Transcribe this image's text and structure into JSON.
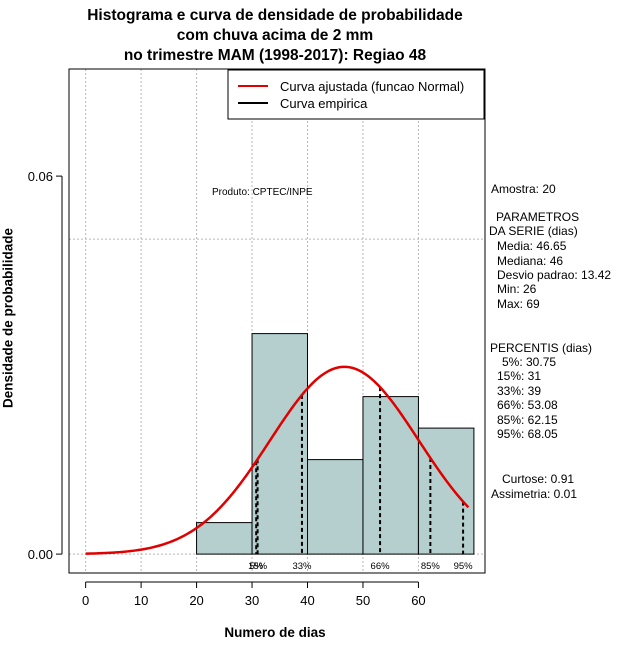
{
  "header": {
    "title_line1": "Histograma e curva de densidade de probabilidade",
    "title_line2": "com chuva acima de 2 mm",
    "title_line3": "no trimestre MAM (1998-2017): Regiao 48"
  },
  "product_label": "Produto: CPTEC/INPE",
  "stats": {
    "amostra": "Amostra: 20",
    "param_title1": "PARAMETROS",
    "param_title2": "DA SERIE (dias)",
    "media": "Media: 46.65",
    "mediana": "Mediana: 46",
    "desvio": "Desvio padrao: 13.42",
    "min": "Min: 26",
    "max": "Max: 69",
    "percentis_title": "PERCENTIS (dias)",
    "p5": "5%: 30.75",
    "p15": "15%: 31",
    "p33": "33%: 39",
    "p66": "66%: 53.08",
    "p85": "85%: 62.15",
    "p95": "95%: 68.05",
    "curtose": "Curtose: 0.91",
    "assimetria": "Assimetria: 0.01"
  },
  "colors": {
    "bar_fill": "#b5cfcf",
    "fitted_curve": "#e00000",
    "grid": "#b8b8b8"
  },
  "chart_data": {
    "type": "histogram",
    "title": "Histograma e curva de densidade de probabilidade com chuva acima de 2 mm no trimestre MAM (1998-2017): Regiao 48",
    "xlabel": "Numero de dias",
    "ylabel": "Densidade de probabilidade",
    "xlim": [
      -3,
      72
    ],
    "ylim": [
      -0.003,
      0.077
    ],
    "xticks": [
      0,
      10,
      20,
      30,
      40,
      50,
      60
    ],
    "xtick_labels": [
      "0",
      "10",
      "20",
      "30",
      "40",
      "50",
      "60"
    ],
    "yticks": [
      0,
      0.06
    ],
    "ytick_labels": [
      "0.00",
      "0.06"
    ],
    "gridlines_x": [
      0,
      10,
      20,
      30,
      40,
      50,
      60
    ],
    "gridlines_y": [
      0,
      0.05
    ],
    "bins": [
      {
        "from": 20,
        "to": 30,
        "density": 0.005
      },
      {
        "from": 30,
        "to": 40,
        "density": 0.035
      },
      {
        "from": 40,
        "to": 50,
        "density": 0.015
      },
      {
        "from": 50,
        "to": 60,
        "density": 0.025
      },
      {
        "from": 60,
        "to": 70,
        "density": 0.02
      }
    ],
    "normal_fit": {
      "mean": 46.65,
      "sd": 13.42,
      "x_from": 0,
      "x_to": 69
    },
    "percentiles": [
      {
        "label": "5%",
        "value": 30.75
      },
      {
        "label": "15%",
        "value": 31
      },
      {
        "label": "33%",
        "value": 39
      },
      {
        "label": "66%",
        "value": 53.08
      },
      {
        "label": "85%",
        "value": 62.15
      },
      {
        "label": "95%",
        "value": 68.05
      }
    ],
    "legend": {
      "position": "top-right",
      "entries": [
        {
          "label": "Curva ajustada (funcao Normal)",
          "color": "#e00000"
        },
        {
          "label": "Curva empirica",
          "color": "#000000"
        }
      ]
    }
  }
}
